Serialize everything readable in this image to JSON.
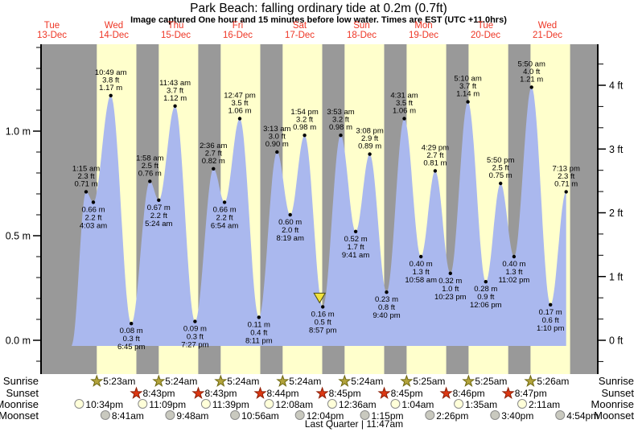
{
  "title": "Park Beach: falling  ordinary tide at 0.2m (0.7ft)",
  "subtitle": "Image captured One hour and 15 minutes before low water. Times are EST (UTC +11.0hrs)",
  "days": [
    {
      "weekday": "Tue",
      "date": "13-Dec"
    },
    {
      "weekday": "Wed",
      "date": "14-Dec"
    },
    {
      "weekday": "Thu",
      "date": "15-Dec"
    },
    {
      "weekday": "Fri",
      "date": "16-Dec"
    },
    {
      "weekday": "Sat",
      "date": "17-Dec"
    },
    {
      "weekday": "Sun",
      "date": "18-Dec"
    },
    {
      "weekday": "Mon",
      "date": "19-Dec"
    },
    {
      "weekday": "Tue",
      "date": "20-Dec"
    },
    {
      "weekday": "Wed",
      "date": "21-Dec"
    }
  ],
  "axis": {
    "left_ticks": [
      {
        "label": "1.0 m",
        "m": 1.0
      },
      {
        "label": "0.5 m",
        "m": 0.5
      },
      {
        "label": "0.0 m",
        "m": 0.0
      }
    ],
    "right_ticks": [
      {
        "label": "4 ft",
        "ft": 4
      },
      {
        "label": "3 ft",
        "ft": 3
      },
      {
        "label": "2 ft",
        "ft": 2
      },
      {
        "label": "1 ft",
        "ft": 1
      },
      {
        "label": "0 ft",
        "ft": 0
      }
    ]
  },
  "chart_data": {
    "type": "area",
    "title": "Park Beach: falling  ordinary tide at 0.2m (0.7ft)",
    "ylabel_left": "m",
    "ylabel_right": "ft",
    "ylim_m": [
      -0.16,
      1.42
    ],
    "curve_start": {
      "day": 0.82,
      "m": -0.02
    },
    "tide_events": [
      {
        "day": 1,
        "time": "1:15 am",
        "ft": "2.3 ft",
        "m": "0.71 m",
        "kind": "high"
      },
      {
        "day": 1,
        "time": "4:03 am",
        "ft": "2.2 ft",
        "m": "0.66 m",
        "kind": "low"
      },
      {
        "day": 1,
        "time": "10:49 am",
        "ft": "3.8 ft",
        "m": "1.17 m",
        "kind": "high"
      },
      {
        "day": 1,
        "time": "6:45 pm",
        "ft": "0.3 ft",
        "m": "0.08 m",
        "kind": "low"
      },
      {
        "day": 2,
        "time": "1:58 am",
        "ft": "2.5 ft",
        "m": "0.76 m",
        "kind": "high"
      },
      {
        "day": 2,
        "time": "5:24 am",
        "ft": "2.2 ft",
        "m": "0.67 m",
        "kind": "low"
      },
      {
        "day": 2,
        "time": "11:43 am",
        "ft": "3.7 ft",
        "m": "1.12 m",
        "kind": "high"
      },
      {
        "day": 2,
        "time": "7:27 pm",
        "ft": "0.3 ft",
        "m": "0.09 m",
        "kind": "low"
      },
      {
        "day": 3,
        "time": "2:36 am",
        "ft": "2.7 ft",
        "m": "0.82 m",
        "kind": "high"
      },
      {
        "day": 3,
        "time": "6:54 am",
        "ft": "2.2 ft",
        "m": "0.66 m",
        "kind": "low"
      },
      {
        "day": 3,
        "time": "12:47 pm",
        "ft": "3.5 ft",
        "m": "1.06 m",
        "kind": "high"
      },
      {
        "day": 3,
        "time": "8:11 pm",
        "ft": "0.4 ft",
        "m": "0.11 m",
        "kind": "low"
      },
      {
        "day": 4,
        "time": "3:13 am",
        "ft": "3.0 ft",
        "m": "0.90 m",
        "kind": "high"
      },
      {
        "day": 4,
        "time": "8:19 am",
        "ft": "2.0 ft",
        "m": "0.60 m",
        "kind": "low"
      },
      {
        "day": 4,
        "time": "1:54 pm",
        "ft": "3.2 ft",
        "m": "0.98 m",
        "kind": "high"
      },
      {
        "day": 4,
        "time": "8:57 pm",
        "ft": "0.5 ft",
        "m": "0.16 m",
        "kind": "low",
        "marker": true
      },
      {
        "day": 5,
        "time": "3:53 am",
        "ft": "3.2 ft",
        "m": "0.98 m",
        "kind": "high"
      },
      {
        "day": 5,
        "time": "9:41 am",
        "ft": "1.7 ft",
        "m": "0.52 m",
        "kind": "low"
      },
      {
        "day": 5,
        "time": "3:08 pm",
        "ft": "2.9 ft",
        "m": "0.89 m",
        "kind": "high"
      },
      {
        "day": 5,
        "time": "9:40 pm",
        "ft": "0.8 ft",
        "m": "0.23 m",
        "kind": "low"
      },
      {
        "day": 6,
        "time": "4:31 am",
        "ft": "3.5 ft",
        "m": "1.06 m",
        "kind": "high"
      },
      {
        "day": 6,
        "time": "10:58 am",
        "ft": "1.3 ft",
        "m": "0.40 m",
        "kind": "low"
      },
      {
        "day": 6,
        "time": "4:29 pm",
        "ft": "2.7 ft",
        "m": "0.81 m",
        "kind": "high"
      },
      {
        "day": 6,
        "time": "10:23 pm",
        "ft": "1.0 ft",
        "m": "0.32 m",
        "kind": "low"
      },
      {
        "day": 7,
        "time": "5:10 am",
        "ft": "3.7 ft",
        "m": "1.14 m",
        "kind": "high"
      },
      {
        "day": 7,
        "time": "12:06 pm",
        "ft": "0.9 ft",
        "m": "0.28 m",
        "kind": "low"
      },
      {
        "day": 7,
        "time": "5:50 pm",
        "ft": "2.5 ft",
        "m": "0.75 m",
        "kind": "high"
      },
      {
        "day": 7,
        "time": "11:02 pm",
        "ft": "1.3 ft",
        "m": "0.40 m",
        "kind": "low"
      },
      {
        "day": 8,
        "time": "5:50 am",
        "ft": "4.0 ft",
        "m": "1.21 m",
        "kind": "high"
      },
      {
        "day": 8,
        "time": "1:10 pm",
        "ft": "0.6 ft",
        "m": "0.17 m",
        "kind": "low"
      },
      {
        "day": 8,
        "time": "7:13 pm",
        "ft": "2.3 ft",
        "m": "0.71 m",
        "kind": "high"
      }
    ]
  },
  "sun_moon": {
    "left_labels": [
      "Sunrise",
      "Sunset",
      "Moonrise",
      "Moonset"
    ],
    "right_labels": [
      "Sunrise",
      "Sunset",
      "Moonrise",
      "Moonset"
    ],
    "sunrise": [
      {
        "day": 1,
        "time": "5:23am"
      },
      {
        "day": 2,
        "time": "5:24am"
      },
      {
        "day": 3,
        "time": "5:24am"
      },
      {
        "day": 4,
        "time": "5:24am"
      },
      {
        "day": 5,
        "time": "5:24am"
      },
      {
        "day": 6,
        "time": "5:25am"
      },
      {
        "day": 7,
        "time": "5:25am"
      },
      {
        "day": 8,
        "time": "5:26am"
      }
    ],
    "sunset": [
      {
        "day": 1,
        "time": "8:43pm"
      },
      {
        "day": 2,
        "time": "8:43pm"
      },
      {
        "day": 3,
        "time": "8:44pm"
      },
      {
        "day": 4,
        "time": "8:45pm"
      },
      {
        "day": 5,
        "time": "8:45pm"
      },
      {
        "day": 6,
        "time": "8:46pm"
      },
      {
        "day": 7,
        "time": "8:47pm"
      }
    ],
    "moonrise": [
      {
        "day": 0,
        "time": "10:34pm"
      },
      {
        "day": 1,
        "time": "11:09pm"
      },
      {
        "day": 2,
        "time": "11:39pm"
      },
      {
        "day": 4,
        "time": "12:08am"
      },
      {
        "day": 5,
        "time": "12:36am"
      },
      {
        "day": 6,
        "time": "1:04am"
      },
      {
        "day": 7,
        "time": "1:35am"
      },
      {
        "day": 8,
        "time": "2:11am"
      }
    ],
    "moonset": [
      {
        "day": 1,
        "time": "8:41am"
      },
      {
        "day": 2,
        "time": "9:48am"
      },
      {
        "day": 3,
        "time": "10:56am"
      },
      {
        "day": 4,
        "time": "12:04pm"
      },
      {
        "day": 5,
        "time": "1:15pm"
      },
      {
        "day": 6,
        "time": "2:26pm"
      },
      {
        "day": 7,
        "time": "3:40pm"
      },
      {
        "day": 8,
        "time": "4:54pm"
      }
    ],
    "moon_phase": "Last Quarter | 11:47am"
  },
  "colors": {
    "night_band": "#999999",
    "day_band": "#ffffcc",
    "tide_fill": "#aab8ee",
    "date_red": "#ee3524",
    "sunrise_star_fill": "#b3a43c",
    "sunrise_star_stroke": "#6e6710",
    "sunset_star_fill": "#dd3813",
    "sunset_star_stroke": "#8c1d05",
    "moonrise_fill": "#ffffd9",
    "moonrise_stroke": "#8a8a8a",
    "moonset_fill": "#c9c9bf",
    "moonset_stroke": "#8a8a8a",
    "marker_fill": "#f2e23c",
    "marker_stroke": "#4a4a10"
  }
}
